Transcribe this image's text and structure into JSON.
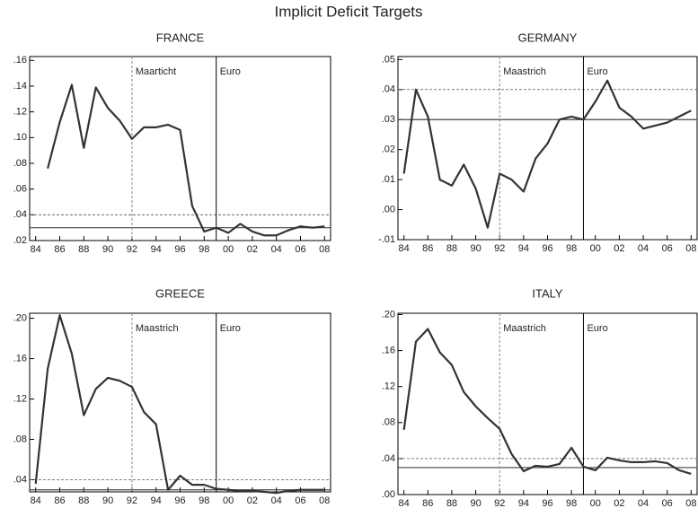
{
  "title": "Implicit Deficit Targets",
  "chart_data": [
    {
      "type": "line",
      "title": "FRANCE",
      "color": "#333333",
      "x": [
        1985,
        1986,
        1987,
        1988,
        1989,
        1990,
        1991,
        1992,
        1993,
        1994,
        1995,
        1996,
        1997,
        1998,
        1999,
        2000,
        2001,
        2002,
        2003,
        2004,
        2005,
        2006,
        2007,
        2008
      ],
      "values": [
        0.076,
        0.112,
        0.141,
        0.092,
        0.139,
        0.123,
        0.113,
        0.099,
        0.108,
        0.108,
        0.11,
        0.106,
        0.047,
        0.027,
        0.03,
        0.026,
        0.033,
        0.027,
        0.024,
        0.024,
        0.028,
        0.031,
        0.03,
        0.031
      ],
      "xlim": [
        1983.5,
        2008.5
      ],
      "ylim": [
        0.02,
        0.163
      ],
      "xticks": [
        {
          "value": 1984,
          "label": "84"
        },
        {
          "value": 1986,
          "label": "86"
        },
        {
          "value": 1988,
          "label": "88"
        },
        {
          "value": 1990,
          "label": "90"
        },
        {
          "value": 1992,
          "label": "92"
        },
        {
          "value": 1994,
          "label": "94"
        },
        {
          "value": 1996,
          "label": "96"
        },
        {
          "value": 1998,
          "label": "98"
        },
        {
          "value": 2000,
          "label": "00"
        },
        {
          "value": 2002,
          "label": "02"
        },
        {
          "value": 2004,
          "label": "04"
        },
        {
          "value": 2006,
          "label": "06"
        },
        {
          "value": 2008,
          "label": "08"
        }
      ],
      "yticks": [
        {
          "value": 0.02,
          "label": ".02"
        },
        {
          "value": 0.04,
          "label": ".04"
        },
        {
          "value": 0.06,
          "label": ".06"
        },
        {
          "value": 0.08,
          "label": ".08"
        },
        {
          "value": 0.1,
          "label": ".10"
        },
        {
          "value": 0.12,
          "label": ".12"
        },
        {
          "value": 0.14,
          "label": ".14"
        },
        {
          "value": 0.16,
          "label": ".16"
        }
      ],
      "hlines": [
        {
          "value": 0.03,
          "style": "solid"
        },
        {
          "value": 0.04,
          "style": "dashed"
        }
      ],
      "vlines": [
        {
          "x": 1992,
          "label": "Maarticht",
          "style": "dashed"
        },
        {
          "x": 1999,
          "label": "Euro",
          "style": "solid"
        }
      ]
    },
    {
      "type": "line",
      "title": "GERMANY",
      "color": "#333333",
      "x": [
        1984,
        1985,
        1986,
        1987,
        1988,
        1989,
        1990,
        1991,
        1992,
        1993,
        1994,
        1995,
        1996,
        1997,
        1998,
        1999,
        2000,
        2001,
        2002,
        2003,
        2004,
        2005,
        2006,
        2007,
        2008
      ],
      "values": [
        0.012,
        0.04,
        0.031,
        0.01,
        0.008,
        0.015,
        0.007,
        -0.006,
        0.012,
        0.01,
        0.006,
        0.017,
        0.022,
        0.03,
        0.031,
        0.03,
        0.036,
        0.043,
        0.034,
        0.031,
        0.027,
        0.028,
        0.029,
        0.031,
        0.033
      ],
      "xlim": [
        1983.5,
        2008.5
      ],
      "ylim": [
        -0.01,
        0.051
      ],
      "xticks": [
        {
          "value": 1984,
          "label": "84"
        },
        {
          "value": 1986,
          "label": "86"
        },
        {
          "value": 1988,
          "label": "88"
        },
        {
          "value": 1990,
          "label": "90"
        },
        {
          "value": 1992,
          "label": "92"
        },
        {
          "value": 1994,
          "label": "94"
        },
        {
          "value": 1996,
          "label": "96"
        },
        {
          "value": 1998,
          "label": "98"
        },
        {
          "value": 2000,
          "label": "00"
        },
        {
          "value": 2002,
          "label": "02"
        },
        {
          "value": 2004,
          "label": "04"
        },
        {
          "value": 2006,
          "label": "06"
        },
        {
          "value": 2008,
          "label": "08"
        }
      ],
      "yticks": [
        {
          "value": -0.01,
          "label": "-.01"
        },
        {
          "value": 0.0,
          "label": ".00"
        },
        {
          "value": 0.01,
          "label": ".01"
        },
        {
          "value": 0.02,
          "label": ".02"
        },
        {
          "value": 0.03,
          "label": ".03"
        },
        {
          "value": 0.04,
          "label": ".04"
        },
        {
          "value": 0.05,
          "label": ".05"
        }
      ],
      "hlines": [
        {
          "value": 0.03,
          "style": "solid"
        },
        {
          "value": 0.04,
          "style": "dashed"
        }
      ],
      "vlines": [
        {
          "x": 1992,
          "label": "Maastrich",
          "style": "dashed"
        },
        {
          "x": 1999,
          "label": "Euro",
          "style": "solid"
        }
      ]
    },
    {
      "type": "line",
      "title": "GREECE",
      "color": "#333333",
      "x": [
        1984,
        1985,
        1986,
        1987,
        1988,
        1989,
        1990,
        1991,
        1992,
        1993,
        1994,
        1995,
        1996,
        1997,
        1998,
        1999,
        2000,
        2001,
        2002,
        2003,
        2004,
        2005,
        2006,
        2007,
        2008
      ],
      "values": [
        0.036,
        0.15,
        0.203,
        0.165,
        0.104,
        0.13,
        0.141,
        0.138,
        0.132,
        0.107,
        0.095,
        0.03,
        0.044,
        0.035,
        0.035,
        0.031,
        0.03,
        0.029,
        0.029,
        0.028,
        0.027,
        0.029,
        0.03,
        0.03,
        0.03
      ],
      "xlim": [
        1983.5,
        2008.5
      ],
      "ylim": [
        0.028,
        0.205
      ],
      "xticks": [
        {
          "value": 1984,
          "label": "84"
        },
        {
          "value": 1986,
          "label": "86"
        },
        {
          "value": 1988,
          "label": "88"
        },
        {
          "value": 1990,
          "label": "90"
        },
        {
          "value": 1992,
          "label": "92"
        },
        {
          "value": 1994,
          "label": "94"
        },
        {
          "value": 1996,
          "label": "96"
        },
        {
          "value": 1998,
          "label": "98"
        },
        {
          "value": 2000,
          "label": "00"
        },
        {
          "value": 2002,
          "label": "02"
        },
        {
          "value": 2004,
          "label": "04"
        },
        {
          "value": 2006,
          "label": "06"
        },
        {
          "value": 2008,
          "label": "08"
        }
      ],
      "yticks": [
        {
          "value": 0.04,
          "label": ".04"
        },
        {
          "value": 0.08,
          "label": ".08"
        },
        {
          "value": 0.12,
          "label": ".12"
        },
        {
          "value": 0.16,
          "label": ".16"
        },
        {
          "value": 0.2,
          "label": ".20"
        }
      ],
      "hlines": [
        {
          "value": 0.03,
          "style": "solid"
        },
        {
          "value": 0.04,
          "style": "dashed"
        }
      ],
      "vlines": [
        {
          "x": 1992,
          "label": "Maastrich",
          "style": "dashed"
        },
        {
          "x": 1999,
          "label": "Euro",
          "style": "solid"
        }
      ]
    },
    {
      "type": "line",
      "title": "ITALY",
      "color": "#333333",
      "x": [
        1984,
        1985,
        1986,
        1987,
        1988,
        1989,
        1990,
        1991,
        1992,
        1993,
        1994,
        1995,
        1996,
        1997,
        1998,
        1999,
        2000,
        2001,
        2002,
        2003,
        2004,
        2005,
        2006,
        2007,
        2008
      ],
      "values": [
        0.072,
        0.17,
        0.184,
        0.158,
        0.144,
        0.114,
        0.098,
        0.085,
        0.073,
        0.045,
        0.026,
        0.032,
        0.031,
        0.034,
        0.052,
        0.031,
        0.027,
        0.041,
        0.038,
        0.036,
        0.036,
        0.037,
        0.035,
        0.027,
        0.023
      ],
      "xlim": [
        1983.5,
        2008.5
      ],
      "ylim": [
        0.0,
        0.2015
      ],
      "xticks": [
        {
          "value": 1984,
          "label": "84"
        },
        {
          "value": 1986,
          "label": "86"
        },
        {
          "value": 1988,
          "label": "88"
        },
        {
          "value": 1990,
          "label": "90"
        },
        {
          "value": 1992,
          "label": "92"
        },
        {
          "value": 1994,
          "label": "94"
        },
        {
          "value": 1996,
          "label": "96"
        },
        {
          "value": 1998,
          "label": "98"
        },
        {
          "value": 2000,
          "label": "00"
        },
        {
          "value": 2002,
          "label": "02"
        },
        {
          "value": 2004,
          "label": "04"
        },
        {
          "value": 2006,
          "label": "06"
        },
        {
          "value": 2008,
          "label": "08"
        }
      ],
      "yticks": [
        {
          "value": 0.0,
          "label": ".00"
        },
        {
          "value": 0.04,
          "label": ".04"
        },
        {
          "value": 0.08,
          "label": ".08"
        },
        {
          "value": 0.12,
          "label": ".12"
        },
        {
          "value": 0.16,
          "label": ".16"
        },
        {
          "value": 0.2,
          "label": ".20"
        }
      ],
      "hlines": [
        {
          "value": 0.03,
          "style": "solid"
        },
        {
          "value": 0.04,
          "style": "dashed"
        }
      ],
      "vlines": [
        {
          "x": 1992,
          "label": "Maastrich",
          "style": "dashed"
        },
        {
          "x": 1999,
          "label": "Euro",
          "style": "solid"
        }
      ]
    }
  ]
}
